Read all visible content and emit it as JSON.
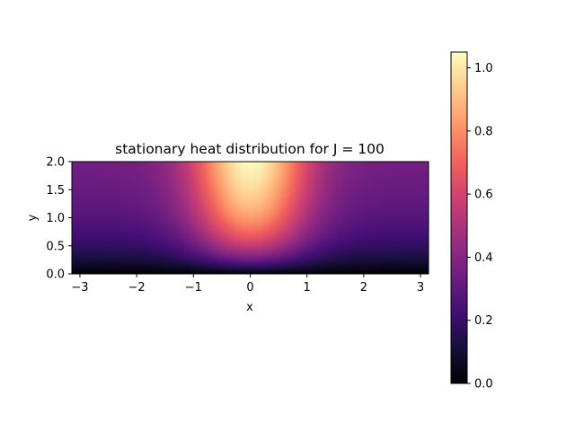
{
  "chart_data": {
    "type": "heatmap",
    "title": "stationary heat distribution for J = 100",
    "xlabel": "x",
    "ylabel": "y",
    "xlim": [
      -3.14159,
      3.14159
    ],
    "ylim": [
      0.0,
      2.0
    ],
    "xticks": [
      -3,
      -2,
      -1,
      0,
      1,
      2,
      3
    ],
    "xtick_labels": [
      "−3",
      "−2",
      "−1",
      "0",
      "1",
      "2",
      "3"
    ],
    "yticks": [
      0.0,
      0.5,
      1.0,
      1.5,
      2.0
    ],
    "ytick_labels": [
      "0.0",
      "0.5",
      "1.0",
      "1.5",
      "2.0"
    ],
    "colormap": "magma",
    "colorbar": {
      "range": [
        0.0,
        1.05
      ],
      "ticks": [
        0.0,
        0.2,
        0.4,
        0.6,
        0.8,
        1.0
      ],
      "tick_labels": [
        "0.0",
        "0.2",
        "0.4",
        "0.6",
        "0.8",
        "1.0"
      ]
    },
    "field": {
      "peak_value": 1.05,
      "peak_location": [
        0.0,
        2.0
      ],
      "boundary_value_at_y0": 0.0,
      "side_value_at_top_edges": 0.35
    }
  },
  "colors": {
    "magma_stops": [
      "#000004",
      "#180f3d",
      "#440f76",
      "#721f81",
      "#9e2f7f",
      "#cd4071",
      "#f1605d",
      "#fd9668",
      "#feca8d",
      "#fcfdbf"
    ]
  }
}
